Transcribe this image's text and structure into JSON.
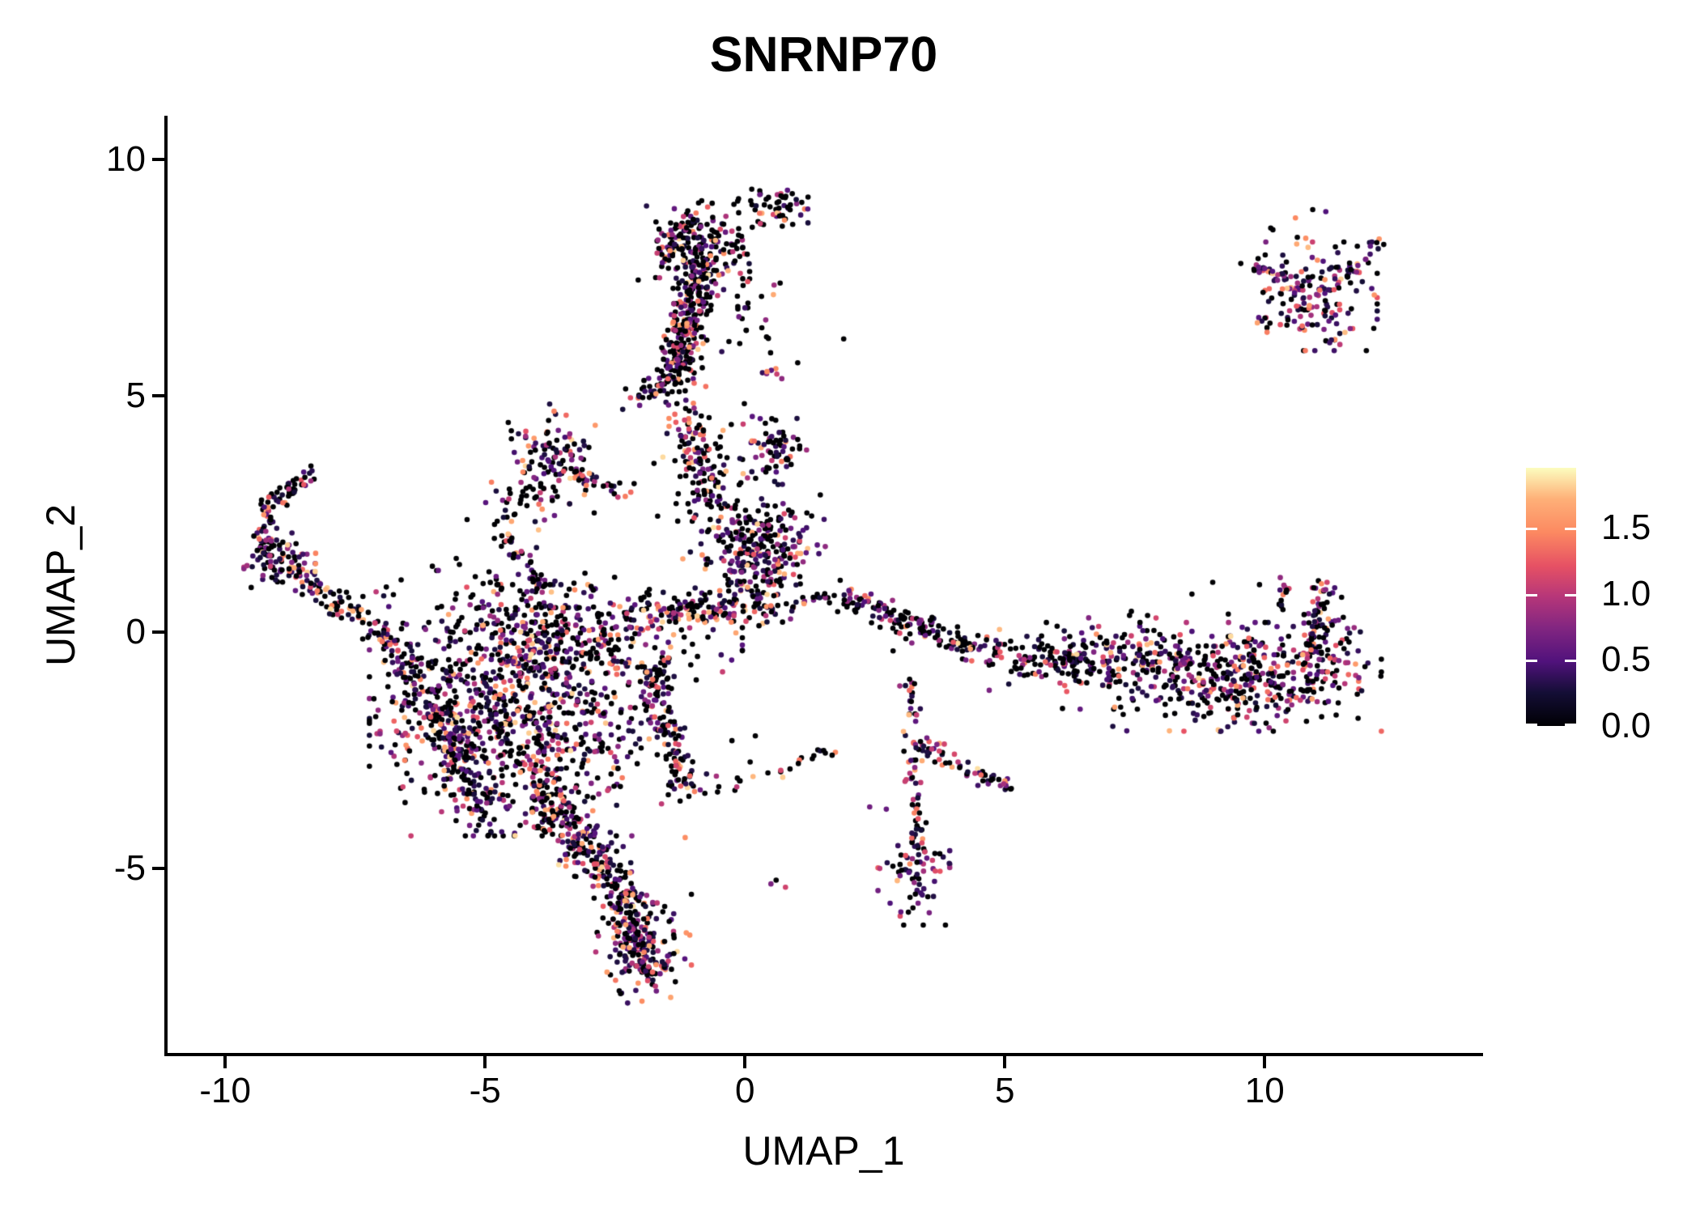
{
  "chart_data": {
    "type": "scatter",
    "title": "SNRNP70",
    "xlabel": "UMAP_1",
    "ylabel": "UMAP_2",
    "x_ticks": [
      -10,
      -5,
      0,
      5,
      10
    ],
    "x_tick_labels": [
      "-10",
      "-5",
      "0",
      "5",
      "10"
    ],
    "y_ticks": [
      10,
      5,
      0,
      -5
    ],
    "y_tick_labels": [
      "10",
      "5",
      "0",
      "-5"
    ],
    "xlim": [
      -11.14,
      14.17
    ],
    "ylim": [
      -8.94,
      10.92
    ],
    "grid": false,
    "background": "#ffffff",
    "axis_color": "#000000",
    "point_radius_px": 3.3,
    "n_points_estimate": 5290,
    "colorbar": {
      "position": "right",
      "ticks": [
        1.5,
        1.0,
        0.5,
        0.0
      ],
      "tick_labels": [
        "1.5",
        "1.0",
        "0.5",
        "0.0"
      ],
      "vmin": 0.0,
      "vmax": 1.955,
      "colormap": "magma",
      "stops": [
        [
          0.0,
          "#000004"
        ],
        [
          0.13,
          "#140e36"
        ],
        [
          0.25,
          "#51127c"
        ],
        [
          0.38,
          "#822681"
        ],
        [
          0.5,
          "#b63679"
        ],
        [
          0.62,
          "#e65164"
        ],
        [
          0.75,
          "#fc8961"
        ],
        [
          0.88,
          "#feb078"
        ],
        [
          1.0,
          "#fcfdbf"
        ]
      ]
    },
    "expression": {
      "zero_fraction_default": 0.45,
      "min_nonzero": 0.25,
      "span": 1.62,
      "skew": 1.9,
      "max": 1.9
    },
    "seed": 42,
    "clusters": {
      "blob_fields": "cx, cy, sx, sy, n, zero_fraction",
      "blobs": [
        [
          -1.0,
          8.2,
          0.48,
          0.42,
          200,
          0.55
        ],
        [
          0.55,
          9.0,
          0.3,
          0.22,
          55,
          0.45
        ],
        [
          -3.85,
          3.6,
          0.45,
          0.55,
          120,
          0.45
        ],
        [
          -4.4,
          2.6,
          0.5,
          0.4,
          25,
          0.5
        ],
        [
          0.55,
          3.85,
          0.3,
          0.33,
          65,
          0.4
        ],
        [
          0.35,
          1.85,
          0.52,
          0.42,
          230,
          0.45
        ],
        [
          -8.95,
          1.45,
          0.3,
          0.28,
          80,
          0.4
        ],
        [
          -4.35,
          -1.9,
          1.25,
          1.05,
          850,
          0.4
        ],
        [
          -3.5,
          -0.15,
          1.5,
          0.5,
          330,
          0.45
        ],
        [
          -1.95,
          -6.7,
          0.4,
          0.5,
          130,
          0.35
        ],
        [
          3.25,
          -5.05,
          0.3,
          0.5,
          75,
          0.3
        ],
        [
          9.6,
          -0.95,
          1.15,
          0.5,
          420,
          0.42
        ],
        [
          7.0,
          -0.6,
          1.0,
          0.45,
          190,
          0.45
        ],
        [
          10.9,
          7.1,
          0.55,
          0.5,
          150,
          0.3
        ],
        [
          11.15,
          -0.1,
          0.3,
          0.45,
          60,
          0.35
        ],
        [
          -0.2,
          6.9,
          0.55,
          0.9,
          45,
          0.55
        ],
        [
          -4.6,
          0.75,
          1.2,
          0.35,
          70,
          0.6
        ],
        [
          -0.6,
          2.9,
          0.5,
          0.8,
          60,
          0.5
        ],
        [
          0.1,
          1.0,
          0.5,
          0.3,
          60,
          0.45
        ],
        [
          3.5,
          -2.45,
          0.18,
          0.12,
          22,
          0.2
        ],
        [
          0.6,
          5.45,
          0.12,
          0.1,
          7,
          0.4
        ],
        [
          10.6,
          7.9,
          0.6,
          0.45,
          22,
          0.4
        ]
      ],
      "chain_fields": "x1, y1, x2, y2, width, n, zero_fraction",
      "chains": [
        [
          -0.85,
          7.7,
          -1.35,
          5.35,
          0.38,
          270,
          0.5
        ],
        [
          -1.35,
          5.35,
          -2.05,
          4.95,
          0.3,
          40,
          0.45
        ],
        [
          -1.25,
          5.0,
          -0.55,
          2.6,
          0.45,
          110,
          0.45
        ],
        [
          -2.1,
          0.45,
          0.7,
          0.55,
          0.45,
          130,
          0.5
        ],
        [
          -8.35,
          3.35,
          -9.15,
          2.7,
          0.22,
          45,
          0.4
        ],
        [
          -9.25,
          2.65,
          -9.2,
          1.6,
          0.22,
          45,
          0.4
        ],
        [
          -8.6,
          1.15,
          -6.55,
          -0.35,
          0.28,
          95,
          0.4
        ],
        [
          -6.6,
          -0.6,
          -4.9,
          -3.9,
          0.5,
          210,
          0.4
        ],
        [
          -3.9,
          -3.6,
          -2.45,
          -5.35,
          0.55,
          230,
          0.4
        ],
        [
          -2.45,
          -5.35,
          -1.9,
          -7.2,
          0.42,
          150,
          0.38
        ],
        [
          -1.85,
          -0.6,
          -1.15,
          -3.3,
          0.4,
          130,
          0.5
        ],
        [
          -1.05,
          -3.45,
          1.75,
          -2.55,
          0.18,
          26,
          0.6
        ],
        [
          3.15,
          -1.0,
          3.3,
          -4.4,
          0.2,
          55,
          0.4
        ],
        [
          3.6,
          -2.6,
          5.15,
          -3.3,
          0.18,
          40,
          0.35
        ],
        [
          1.75,
          0.8,
          4.6,
          -0.45,
          0.32,
          150,
          0.5
        ],
        [
          4.6,
          -0.45,
          7.0,
          -0.75,
          0.4,
          90,
          0.5
        ],
        [
          10.9,
          -0.3,
          11.15,
          1.0,
          0.18,
          40,
          0.35
        ],
        [
          10.3,
          0.4,
          10.4,
          0.95,
          0.1,
          14,
          0.35
        ],
        [
          11.5,
          7.4,
          12.25,
          8.3,
          0.15,
          25,
          0.35
        ],
        [
          9.75,
          7.7,
          10.4,
          7.55,
          0.12,
          18,
          0.3
        ],
        [
          -3.4,
          3.3,
          -2.3,
          3.0,
          0.18,
          30,
          0.45
        ],
        [
          -4.6,
          2.0,
          -3.9,
          0.9,
          0.2,
          40,
          0.45
        ],
        [
          0.9,
          0.6,
          1.7,
          0.75,
          0.2,
          18,
          0.5
        ]
      ],
      "outlier_fields": "x, y, expression",
      "outliers": [
        [
          0.6,
          -5.25,
          0
        ],
        [
          0.78,
          -5.4,
          1.1
        ],
        [
          0.5,
          -5.33,
          0.7
        ],
        [
          2.4,
          -3.7,
          0.65
        ],
        [
          2.72,
          -3.75,
          0.6
        ],
        [
          1.9,
          6.2,
          0
        ],
        [
          -6.9,
          0.95,
          0
        ],
        [
          -7.35,
          0.75,
          0
        ],
        [
          -5.9,
          1.3,
          0.6
        ],
        [
          9.0,
          1.05,
          0
        ],
        [
          8.6,
          0.8,
          0
        ],
        [
          7.4,
          0.35,
          0
        ],
        [
          5.8,
          0.2,
          0
        ],
        [
          11.6,
          -0.65,
          0.9
        ],
        [
          3.0,
          0.35,
          0
        ],
        [
          2.6,
          0.1,
          0
        ],
        [
          2.85,
          -0.4,
          0
        ],
        [
          -0.25,
          -2.3,
          0
        ],
        [
          0.2,
          -2.2,
          0
        ],
        [
          -1.15,
          -4.35,
          1.5
        ],
        [
          10.3,
          1.15,
          0.8
        ],
        [
          1.45,
          2.9,
          0
        ],
        [
          0.1,
          -2.75,
          0
        ],
        [
          -0.55,
          -3.05,
          0.9
        ],
        [
          5.0,
          -3.15,
          1.55
        ],
        [
          4.1,
          -2.75,
          1.0
        ],
        [
          -0.1,
          6.1,
          0
        ],
        [
          0.4,
          6.6,
          0.8
        ],
        [
          9.9,
          1.0,
          0
        ],
        [
          11.2,
          1.05,
          1.1
        ]
      ]
    }
  }
}
